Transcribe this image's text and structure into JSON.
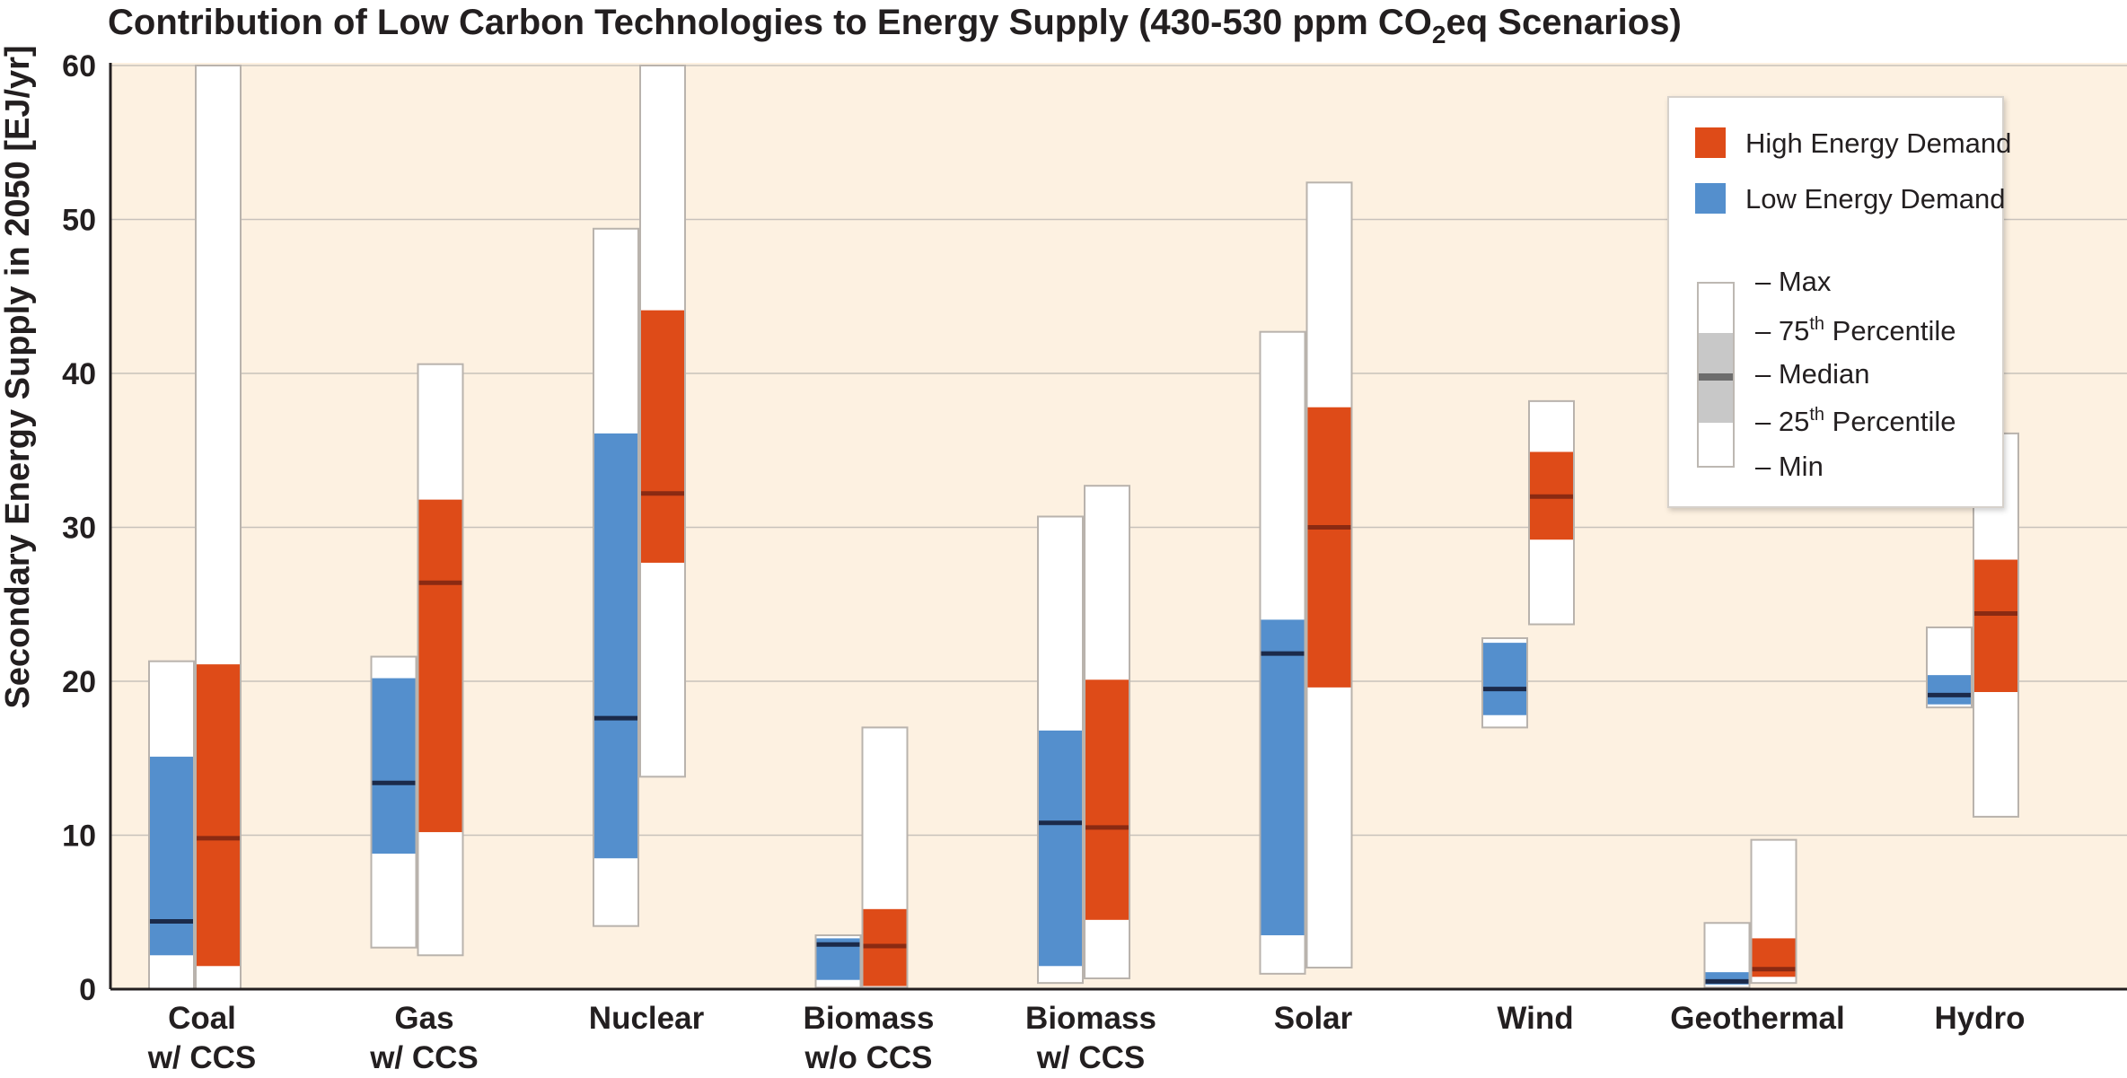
{
  "chart_data": {
    "type": "box",
    "title": "Contribution of Low Carbon Technologies to Energy Supply (430-530 ppm CO",
    "title_sub": "2",
    "title_end": "eq Scenarios)",
    "ylabel": "Secondary Energy Supply in 2050 [EJ/yr]",
    "ylim": [
      0,
      60
    ],
    "yticks": [
      0,
      10,
      20,
      30,
      40,
      50,
      60
    ],
    "grid": true,
    "legend_position": "top-right",
    "categories": [
      {
        "line1": "Coal",
        "line2": "w/ CCS"
      },
      {
        "line1": "Gas",
        "line2": "w/ CCS"
      },
      {
        "line1": "Nuclear",
        "line2": ""
      },
      {
        "line1": "Biomass",
        "line2": "w/o CCS"
      },
      {
        "line1": "Biomass",
        "line2": "w/ CCS"
      },
      {
        "line1": "Solar",
        "line2": ""
      },
      {
        "line1": "Wind",
        "line2": ""
      },
      {
        "line1": "Geothermal",
        "line2": ""
      },
      {
        "line1": "Hydro",
        "line2": ""
      }
    ],
    "series": [
      {
        "name": "Low Energy Demand",
        "color": "#548fcd",
        "median_color": "#1b2a4a",
        "boxes": [
          {
            "min": 0,
            "q1": 2.2,
            "median": 4.4,
            "q3": 15.1,
            "max": 21.3
          },
          {
            "min": 2.7,
            "q1": 8.8,
            "median": 13.4,
            "q3": 20.2,
            "max": 21.6
          },
          {
            "min": 4.1,
            "q1": 8.5,
            "median": 17.6,
            "q3": 36.1,
            "max": 49.4
          },
          {
            "min": 0.1,
            "q1": 0.6,
            "median": 2.9,
            "q3": 3.3,
            "max": 3.5
          },
          {
            "min": 0.4,
            "q1": 1.5,
            "median": 10.8,
            "q3": 16.8,
            "max": 30.7
          },
          {
            "min": 1.0,
            "q1": 3.5,
            "median": 21.8,
            "q3": 24.0,
            "max": 42.7
          },
          {
            "min": 17.0,
            "q1": 17.8,
            "median": 19.5,
            "q3": 22.5,
            "max": 22.8
          },
          {
            "min": 0.1,
            "q1": 0.3,
            "median": 0.5,
            "q3": 1.1,
            "max": 4.3
          },
          {
            "min": 18.3,
            "q1": 18.5,
            "median": 19.1,
            "q3": 20.4,
            "max": 23.5
          }
        ]
      },
      {
        "name": "High Energy Demand",
        "color": "#de4b18",
        "median_color": "#8a2a12",
        "boxes": [
          {
            "min": 0,
            "q1": 1.5,
            "median": 9.8,
            "q3": 21.1,
            "max": 60
          },
          {
            "min": 2.2,
            "q1": 10.2,
            "median": 26.4,
            "q3": 31.8,
            "max": 40.6
          },
          {
            "min": 13.8,
            "q1": 27.7,
            "median": 32.2,
            "q3": 44.1,
            "max": 60
          },
          {
            "min": 0.1,
            "q1": 0.2,
            "median": 2.8,
            "q3": 5.2,
            "max": 17.0
          },
          {
            "min": 0.7,
            "q1": 4.5,
            "median": 10.5,
            "q3": 20.1,
            "max": 32.7
          },
          {
            "min": 1.4,
            "q1": 19.6,
            "median": 30.0,
            "q3": 37.8,
            "max": 52.4
          },
          {
            "min": 23.7,
            "q1": 29.2,
            "median": 32.0,
            "q3": 34.9,
            "max": 38.2
          },
          {
            "min": 0.4,
            "q1": 0.8,
            "median": 1.3,
            "q3": 3.3,
            "max": 9.7
          },
          {
            "min": 11.2,
            "q1": 19.3,
            "median": 24.4,
            "q3": 27.9,
            "max": 36.1
          }
        ]
      }
    ],
    "legend": {
      "series": [
        {
          "label": "High Energy Demand",
          "color": "#de4b18"
        },
        {
          "label": "Low Energy Demand",
          "color": "#548fcd"
        }
      ],
      "key": [
        {
          "dash": "–",
          "label": "Max",
          "sup": "",
          "rest": ""
        },
        {
          "dash": "–",
          "label": "75",
          "sup": "th",
          "rest": " Percentile"
        },
        {
          "dash": "–",
          "label": "Median",
          "sup": "",
          "rest": ""
        },
        {
          "dash": "–",
          "label": "25",
          "sup": "th",
          "rest": " Percentile"
        },
        {
          "dash": "–",
          "label": "Min",
          "sup": "",
          "rest": ""
        }
      ]
    },
    "colors": {
      "plot_background": "#fdf1e1",
      "grid": "#c8c2bb",
      "whisker_fill": "#ffffff",
      "whisker_stroke": "#b9b3ad"
    }
  }
}
